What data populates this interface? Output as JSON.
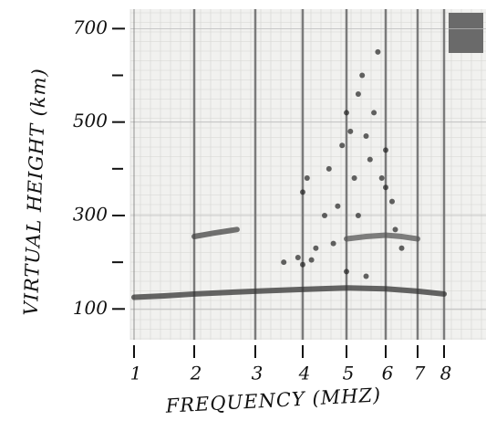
{
  "chart_data": {
    "type": "scatter",
    "x_label": "FREQUENCY (MHZ)",
    "y_label": "VIRTUAL HEIGHT (km)",
    "xlim": [
      0.95,
      9.5
    ],
    "ylim": [
      40,
      730
    ],
    "xticks": [
      1,
      2,
      3,
      4,
      5,
      6,
      7,
      8
    ],
    "yticks": [
      {
        "value": 100,
        "label": "100"
      },
      {
        "value": 300,
        "label": "300"
      },
      {
        "value": 500,
        "label": "500"
      },
      {
        "value": 700,
        "label": "700"
      }
    ],
    "yminorticks": [
      200,
      400,
      600
    ],
    "grid": true,
    "series": [
      {
        "color": "#333333",
        "style": "line",
        "x": [
          1,
          1.5,
          2,
          2.5,
          3,
          4,
          5,
          6,
          7,
          8
        ],
        "values": [
          125,
          128,
          132,
          135,
          138,
          142,
          145,
          143,
          138,
          132
        ]
      },
      {
        "color": "#444444",
        "style": "line",
        "x": [
          2,
          2.3,
          2.7
        ],
        "values": [
          255,
          262,
          270
        ]
      },
      {
        "color": "#555555",
        "style": "line",
        "x": [
          5,
          5.5,
          6,
          6.5,
          7
        ],
        "values": [
          250,
          255,
          258,
          255,
          250
        ]
      },
      {
        "color": "#222222",
        "style": "points",
        "x": [
          3.6,
          3.9,
          4.0,
          4.1,
          4.3,
          4.5,
          4.6,
          4.8,
          4.9,
          5.0,
          5.1,
          5.2,
          5.3,
          5.4,
          5.5,
          5.6,
          5.7,
          5.8,
          5.9,
          6.0,
          6.2,
          6.3,
          6.5,
          4.0,
          4.2,
          5.0,
          5.5,
          6.0,
          4.7,
          5.3
        ],
        "values": [
          200,
          210,
          350,
          380,
          230,
          300,
          400,
          320,
          450,
          520,
          480,
          380,
          560,
          600,
          470,
          420,
          520,
          650,
          380,
          440,
          330,
          270,
          230,
          195,
          205,
          180,
          170,
          360,
          240,
          300
        ]
      }
    ]
  }
}
